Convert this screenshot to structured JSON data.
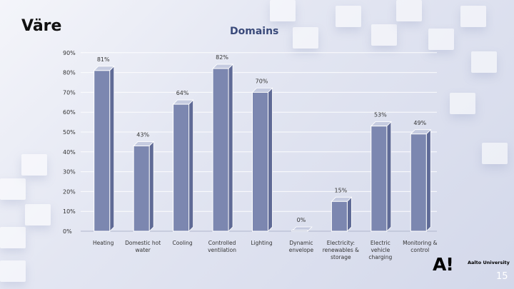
{
  "header": {
    "brand": "Väre"
  },
  "footer": {
    "logo": "A!",
    "university": "Aalto University",
    "page_number": "15"
  },
  "chart_data": {
    "type": "bar",
    "title": "Domains",
    "xlabel": "",
    "ylabel": "",
    "ylim": [
      0,
      90
    ],
    "ticks": [
      "0%",
      "10%",
      "20%",
      "30%",
      "40%",
      "50%",
      "60%",
      "70%",
      "80%",
      "90%"
    ],
    "tick_values": [
      0,
      10,
      20,
      30,
      40,
      50,
      60,
      70,
      80,
      90
    ],
    "categories": [
      [
        "Heating"
      ],
      [
        "Domestic hot",
        "water"
      ],
      [
        "Cooling"
      ],
      [
        "Controlled",
        "ventilation"
      ],
      [
        "Lighting"
      ],
      [
        "Dynamic",
        "envelope"
      ],
      [
        "Electricity:",
        "renewables &",
        "storage"
      ],
      [
        "Electric",
        "vehicle",
        "charging"
      ],
      [
        "Monitoring &",
        "control"
      ]
    ],
    "values": [
      81,
      43,
      64,
      82,
      70,
      0,
      15,
      53,
      49
    ],
    "value_labels": [
      "81%",
      "43%",
      "64%",
      "82%",
      "70%",
      "0%",
      "15%",
      "53%",
      "49%"
    ],
    "grid": true,
    "legend": "none",
    "colors": {
      "bar": "#7c87b0",
      "bar_dark": "#5f6a96",
      "title": "#3a4a7a"
    }
  }
}
